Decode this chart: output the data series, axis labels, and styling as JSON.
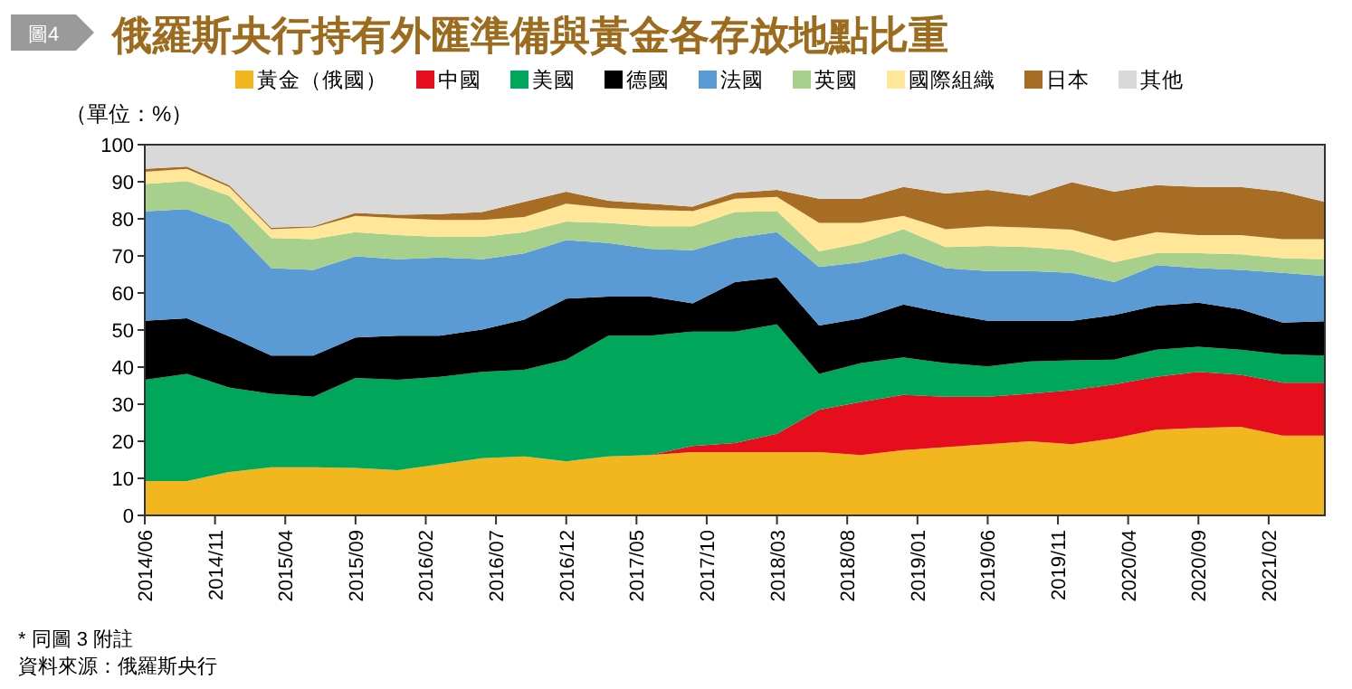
{
  "chart_data": {
    "type": "area",
    "stacked": true,
    "title": "俄羅斯央行持有外匯準備與黃金各存放地點比重",
    "ylabel": "（單位：%）",
    "legend": "top",
    "annotations": [
      "圖4",
      "* 同圖 3 附註",
      "資料來源：俄羅斯央行"
    ],
    "x": [
      "2014-06",
      "2014-09",
      "2014-12",
      "2015-03",
      "2015-06",
      "2015-09",
      "2015-12",
      "2016-03",
      "2016-06",
      "2016-09",
      "2016-12",
      "2017-03",
      "2017-06",
      "2017-09",
      "2017-12",
      "2018-03",
      "2018-06",
      "2018-09",
      "2018-12",
      "2019-03",
      "2019-06",
      "2019-09",
      "2019-12",
      "2020-03",
      "2020-06",
      "2020-09",
      "2020-12",
      "2021-03",
      "2021-06"
    ],
    "xlim": [
      "2014-06",
      "2021-06"
    ],
    "xticks": [
      {
        "value": "2014-06",
        "label": "2014/06"
      },
      {
        "value": "2014-11",
        "label": "2014/11"
      },
      {
        "value": "2015-04",
        "label": "2015/04"
      },
      {
        "value": "2015-09",
        "label": "2015/09"
      },
      {
        "value": "2016-02",
        "label": "2016/02"
      },
      {
        "value": "2016-07",
        "label": "2016/07"
      },
      {
        "value": "2016-12",
        "label": "2016/12"
      },
      {
        "value": "2017-05",
        "label": "2017/05"
      },
      {
        "value": "2017-10",
        "label": "2017/10"
      },
      {
        "value": "2018-03",
        "label": "2018/03"
      },
      {
        "value": "2018-08",
        "label": "2018/08"
      },
      {
        "value": "2019-01",
        "label": "2019/01"
      },
      {
        "value": "2019-06",
        "label": "2019/06"
      },
      {
        "value": "2019-11",
        "label": "2019/11"
      },
      {
        "value": "2020-04",
        "label": "2020/04"
      },
      {
        "value": "2020-09",
        "label": "2020/09"
      },
      {
        "value": "2021-02",
        "label": "2021/02"
      }
    ],
    "ylim": [
      0,
      100
    ],
    "yticks": [
      0,
      10,
      20,
      30,
      40,
      50,
      60,
      70,
      80,
      90,
      100
    ],
    "series": [
      {
        "name": "黃金（俄國）",
        "color": "#f2b71e",
        "values": [
          9.3,
          9.3,
          11.7,
          13.0,
          13.0,
          12.8,
          12.2,
          13.8,
          15.4,
          15.9,
          14.6,
          15.9,
          16.3,
          17.1,
          17.1,
          17.1,
          17.1,
          16.3,
          17.6,
          18.4,
          19.2,
          20.0,
          19.2,
          20.8,
          23.1,
          23.6,
          23.9,
          21.5,
          21.5
        ]
      },
      {
        "name": "中國",
        "color": "#e60d1d",
        "values": [
          0,
          0,
          0,
          0,
          0,
          0,
          0,
          0,
          0,
          0,
          0,
          0,
          0,
          1.6,
          2.4,
          4.9,
          11.4,
          14.3,
          14.9,
          13.6,
          12.8,
          12.8,
          14.6,
          14.5,
          14.3,
          15.1,
          14.0,
          14.3,
          14.3
        ]
      },
      {
        "name": "美國",
        "color": "#00a65a",
        "values": [
          27.3,
          28.9,
          22.8,
          19.8,
          19.0,
          24.3,
          24.4,
          23.6,
          23.3,
          23.4,
          27.4,
          32.6,
          32.2,
          30.9,
          30.1,
          29.5,
          9.7,
          10.5,
          10.1,
          9.1,
          8.2,
          8.7,
          8.0,
          6.7,
          7.3,
          6.8,
          6.8,
          7.6,
          7.3
        ]
      },
      {
        "name": "德國",
        "color": "#000000",
        "values": [
          15.9,
          15.0,
          13.8,
          10.3,
          11.1,
          10.9,
          11.9,
          11.1,
          11.4,
          13.5,
          16.5,
          10.5,
          10.5,
          7.6,
          13.3,
          12.7,
          13.0,
          12.1,
          14.3,
          13.4,
          12.3,
          11.0,
          10.7,
          12.0,
          11.9,
          11.9,
          10.9,
          8.6,
          9.3
        ]
      },
      {
        "name": "法國",
        "color": "#5b9bd5",
        "values": [
          29.5,
          29.4,
          30.2,
          23.6,
          23.1,
          21.9,
          20.6,
          21.1,
          19.0,
          17.9,
          15.8,
          14.5,
          12.9,
          14.3,
          11.9,
          12.2,
          15.8,
          15.1,
          13.8,
          12.2,
          13.4,
          13.4,
          12.9,
          8.9,
          10.9,
          9.3,
          10.6,
          13.4,
          12.2
        ]
      },
      {
        "name": "英國",
        "color": "#a8d08d",
        "values": [
          7.4,
          7.6,
          7.7,
          8.1,
          8.3,
          6.5,
          6.5,
          5.5,
          6.0,
          5.7,
          5.0,
          5.4,
          6.1,
          6.5,
          7.0,
          5.7,
          4.2,
          5.2,
          6.5,
          5.7,
          6.8,
          6.5,
          6.1,
          5.4,
          3.2,
          4.0,
          4.2,
          4.0,
          4.5
        ]
      },
      {
        "name": "國際組織",
        "color": "#ffe699",
        "values": [
          3.3,
          3.3,
          2.4,
          2.4,
          3.2,
          4.4,
          4.6,
          4.6,
          4.6,
          4.1,
          4.8,
          4.0,
          4.4,
          4.1,
          3.6,
          3.8,
          7.7,
          5.4,
          3.6,
          4.8,
          5.3,
          5.2,
          5.6,
          5.7,
          5.7,
          4.9,
          5.2,
          5.1,
          5.4
        ]
      },
      {
        "name": "日本",
        "color": "#a86d24",
        "values": [
          0.8,
          0.6,
          0.5,
          0.4,
          0.3,
          0.8,
          0.9,
          1.6,
          2.1,
          4.1,
          3.2,
          2.0,
          1.7,
          1.2,
          1.6,
          1.9,
          6.5,
          6.5,
          7.8,
          9.6,
          9.8,
          8.6,
          12.8,
          13.3,
          12.7,
          13.0,
          13.0,
          12.8,
          10.1
        ]
      },
      {
        "name": "其他",
        "color": "#d9d9d9",
        "values": [
          6.5,
          5.9,
          10.9,
          22.4,
          22.0,
          18.4,
          18.9,
          18.7,
          18.2,
          15.4,
          12.7,
          15.1,
          15.9,
          16.7,
          13.0,
          12.2,
          14.6,
          14.6,
          11.4,
          13.2,
          12.2,
          13.8,
          10.1,
          12.7,
          10.9,
          11.4,
          11.4,
          12.7,
          15.4
        ]
      }
    ]
  }
}
